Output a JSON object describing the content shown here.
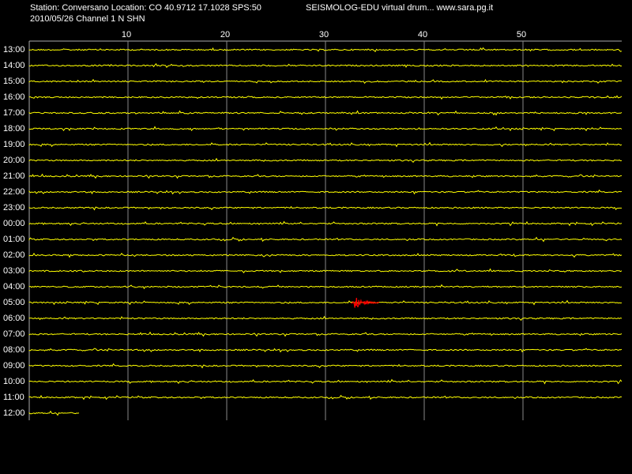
{
  "header": {
    "station": "Station: Conversano Location: CO 40.9712 17.1028 SPS:50",
    "date_channel": "2010/05/26  Channel 1 N SHN",
    "app": "SEISMOLOG-EDU virtual drum... www.sara.pg.it"
  },
  "minute_axis": {
    "range": [
      0,
      60
    ],
    "ticks": [
      10,
      20,
      30,
      40,
      50
    ]
  },
  "rows": [
    "13:00",
    "14:00",
    "15:00",
    "16:00",
    "17:00",
    "18:00",
    "19:00",
    "20:00",
    "21:00",
    "22:00",
    "23:00",
    "00:00",
    "01:00",
    "02:00",
    "03:00",
    "04:00",
    "05:00",
    "06:00",
    "07:00",
    "08:00",
    "09:00",
    "10:00",
    "11:00",
    "12:00"
  ]
}
